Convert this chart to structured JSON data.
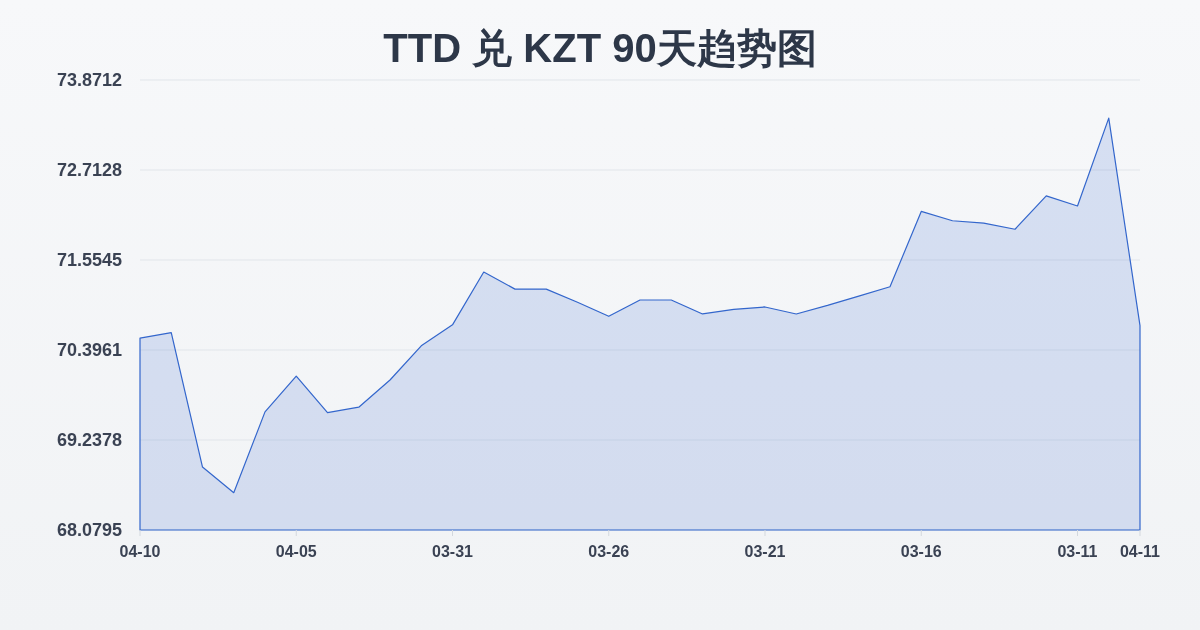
{
  "chart_data": {
    "type": "area",
    "title": "TTD 兑 KZT 90天趋势图",
    "categories": [
      "04-10",
      null,
      null,
      null,
      null,
      "04-05",
      null,
      null,
      null,
      null,
      "03-31",
      null,
      null,
      null,
      null,
      "03-26",
      null,
      null,
      null,
      null,
      "03-21",
      null,
      null,
      null,
      null,
      "03-16",
      null,
      null,
      null,
      null,
      "03-11",
      null,
      "04-11"
    ],
    "series": [
      {
        "color": "#3366cc",
        "values": [
          70.55,
          70.62,
          68.89,
          68.56,
          69.6,
          70.06,
          69.59,
          69.66,
          70.01,
          70.45,
          70.72,
          71.4,
          71.18,
          71.18,
          71.01,
          70.83,
          71.04,
          71.04,
          70.86,
          70.92,
          70.95,
          70.86,
          70.97,
          71.09,
          71.21,
          72.18,
          72.06,
          72.03,
          71.95,
          72.38,
          72.25,
          73.38,
          70.71
        ]
      }
    ],
    "ylim": [
      68.0795,
      73.8712
    ],
    "yticks": [
      68.0795,
      69.2378,
      70.3961,
      71.5545,
      72.7128,
      73.8712
    ],
    "grid": "y"
  }
}
